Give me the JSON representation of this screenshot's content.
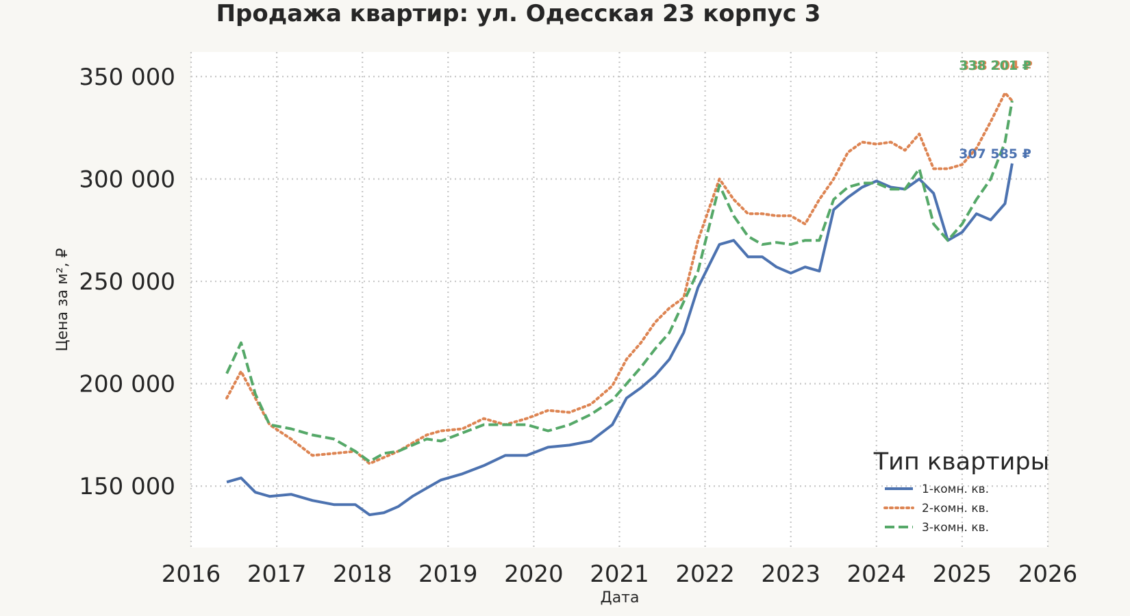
{
  "chart_data": {
    "type": "line",
    "title": "Продажа квартир: ул. Одесская 23 корпус 3",
    "xlabel": "Дата",
    "ylabel": "Цена за м², ₽",
    "xlim": [
      "2016-01-01",
      "2026-01-01"
    ],
    "ylim": [
      120000,
      362000
    ],
    "x_ticks": [
      "2016",
      "2017",
      "2018",
      "2019",
      "2020",
      "2021",
      "2022",
      "2023",
      "2024",
      "2025",
      "2026"
    ],
    "y_ticks": [
      {
        "value": 150000,
        "label": "150 000"
      },
      {
        "value": 200000,
        "label": "200 000"
      },
      {
        "value": 250000,
        "label": "250 000"
      },
      {
        "value": 300000,
        "label": "300 000"
      },
      {
        "value": 350000,
        "label": "350 000"
      }
    ],
    "grid": true,
    "legend": {
      "title": "Тип квартиры",
      "position": "bottom-right"
    },
    "x": [
      "2016-06",
      "2016-08",
      "2016-10",
      "2016-12",
      "2017-03",
      "2017-06",
      "2017-09",
      "2017-12",
      "2018-02",
      "2018-04",
      "2018-06",
      "2018-08",
      "2018-10",
      "2018-12",
      "2019-03",
      "2019-06",
      "2019-09",
      "2019-12",
      "2020-03",
      "2020-06",
      "2020-09",
      "2020-12",
      "2021-02",
      "2021-04",
      "2021-06",
      "2021-08",
      "2021-10",
      "2021-12",
      "2022-03",
      "2022-05",
      "2022-07",
      "2022-09",
      "2022-11",
      "2023-01",
      "2023-03",
      "2023-05",
      "2023-07",
      "2023-09",
      "2023-11",
      "2024-01",
      "2024-03",
      "2024-05",
      "2024-07",
      "2024-09",
      "2024-11",
      "2025-01",
      "2025-03",
      "2025-05",
      "2025-07",
      "2025-08"
    ],
    "series": [
      {
        "name": "1-комн. кв.",
        "color": "#4c72b0",
        "dash": "solid",
        "values": [
          152000,
          154000,
          147000,
          145000,
          146000,
          143000,
          141000,
          141000,
          136000,
          137000,
          140000,
          145000,
          149000,
          153000,
          156000,
          160000,
          165000,
          165000,
          169000,
          170000,
          172000,
          180000,
          193000,
          198000,
          204000,
          212000,
          225000,
          247000,
          268000,
          270000,
          262000,
          262000,
          257000,
          254000,
          257000,
          255000,
          285000,
          291000,
          296000,
          299000,
          296000,
          295000,
          300000,
          293000,
          270000,
          274000,
          283000,
          280000,
          288000,
          307585
        ]
      },
      {
        "name": "2-комн. кв.",
        "color": "#dd8452",
        "dash": "dot",
        "values": [
          193000,
          206000,
          193000,
          180000,
          173000,
          165000,
          166000,
          167000,
          161000,
          164000,
          167000,
          171000,
          175000,
          177000,
          178000,
          183000,
          180000,
          183000,
          187000,
          186000,
          190000,
          199000,
          212000,
          220000,
          230000,
          237000,
          242000,
          270000,
          300000,
          290000,
          283000,
          283000,
          282000,
          282000,
          278000,
          290000,
          300000,
          313000,
          318000,
          317000,
          318000,
          314000,
          322000,
          305000,
          305000,
          307000,
          315000,
          328000,
          342000,
          338204
        ]
      },
      {
        "name": "3-комн. кв.",
        "color": "#55a868",
        "dash": "dash",
        "values": [
          205000,
          220000,
          195000,
          180000,
          178000,
          175000,
          173000,
          167000,
          162000,
          166000,
          167000,
          170000,
          173000,
          172000,
          176000,
          180000,
          180000,
          180000,
          177000,
          180000,
          185000,
          192000,
          200000,
          208000,
          217000,
          225000,
          240000,
          255000,
          297000,
          282000,
          272000,
          268000,
          269000,
          268000,
          270000,
          270000,
          290000,
          296000,
          298000,
          298000,
          295000,
          295000,
          305000,
          278000,
          270000,
          278000,
          290000,
          300000,
          318000,
          338201
        ]
      }
    ],
    "annotations": [
      {
        "text": "307 585 ₽",
        "series": "1-комн. кв.",
        "color": "#4c72b0"
      },
      {
        "text": "338 204 ₽",
        "series": "2-комн. кв.",
        "color": "#dd8452"
      },
      {
        "text": "338 201 ₽",
        "series": "3-комн. кв.",
        "color": "#55a868"
      }
    ]
  }
}
